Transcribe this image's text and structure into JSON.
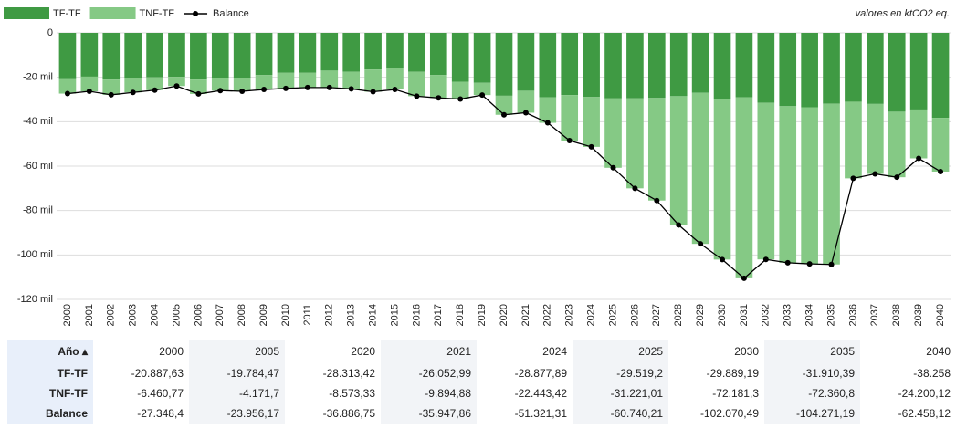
{
  "chart_data": {
    "type": "bar",
    "stacked": true,
    "note": "valores en ktCO2 eq.",
    "categories": [
      "2000",
      "2001",
      "2002",
      "2003",
      "2004",
      "2005",
      "2006",
      "2007",
      "2008",
      "2009",
      "2010",
      "2011",
      "2012",
      "2013",
      "2014",
      "2015",
      "2016",
      "2017",
      "2018",
      "2019",
      "2020",
      "2021",
      "2022",
      "2023",
      "2024",
      "2025",
      "2026",
      "2027",
      "2028",
      "2029",
      "2030",
      "2031",
      "2032",
      "2033",
      "2034",
      "2035",
      "2036",
      "2037",
      "2038",
      "2039",
      "2040"
    ],
    "series": [
      {
        "name": "TF-TF",
        "color": "#3f9a43",
        "values": [
          -20887.63,
          -19700,
          -21000,
          -20500,
          -20000,
          -19784.47,
          -21000,
          -20500,
          -20300,
          -19000,
          -18000,
          -18000,
          -17000,
          -17500,
          -16500,
          -16000,
          -17500,
          -19000,
          -22000,
          -22500,
          -28313.42,
          -26052.99,
          -29000,
          -28000,
          -28877.89,
          -29519.2,
          -29500,
          -29300,
          -28500,
          -27000,
          -29889.19,
          -29000,
          -31500,
          -33000,
          -33500,
          -31910.39,
          -31000,
          -32000,
          -35500,
          -34500,
          -38258
        ]
      },
      {
        "name": "TNF-TF",
        "color": "#85c985",
        "values": [
          -6460.77,
          -6600,
          -6900,
          -6300,
          -5800,
          -4171.7,
          -6500,
          -5500,
          -6000,
          -6500,
          -7000,
          -6600,
          -7600,
          -7700,
          -10000,
          -9500,
          -11000,
          -10300,
          -7800,
          -5500,
          -8573.33,
          -9894.88,
          -11500,
          -20500,
          -22443.42,
          -31221.01,
          -40500,
          -46200,
          -58000,
          -68000,
          -72181.3,
          -81500,
          -70500,
          -70500,
          -70500,
          -72360.8,
          -34500,
          -31500,
          -29500,
          -22000,
          -24200.12
        ]
      },
      {
        "name": "Balance",
        "type": "line",
        "color": "#000000",
        "values": [
          -27348.4,
          -26300,
          -27900,
          -26800,
          -25800,
          -23956.17,
          -27500,
          -26000,
          -26300,
          -25500,
          -25000,
          -24600,
          -24600,
          -25200,
          -26500,
          -25500,
          -28500,
          -29300,
          -29800,
          -28000,
          -36886.75,
          -35947.86,
          -40500,
          -48500,
          -51321.31,
          -60740.21,
          -70000,
          -75500,
          -86500,
          -95000,
          -102070.49,
          -110500,
          -102000,
          -103500,
          -104000,
          -104271.19,
          -65500,
          -63500,
          -65000,
          -56500,
          -62458.12
        ]
      }
    ],
    "ylim": [
      -120000,
      0
    ],
    "yticks": [
      {
        "value": 0,
        "label": "0"
      },
      {
        "value": -20000,
        "label": "-20 mil"
      },
      {
        "value": -40000,
        "label": "-40 mil"
      },
      {
        "value": -60000,
        "label": "-60 mil"
      },
      {
        "value": -80000,
        "label": "-80 mil"
      },
      {
        "value": -100000,
        "label": "-100 mil"
      },
      {
        "value": -120000,
        "label": "-120 mil"
      }
    ],
    "grid": true,
    "legend": "top-left"
  },
  "table": {
    "header": [
      "Año ▴",
      "2000",
      "2005",
      "2020",
      "2021",
      "2024",
      "2025",
      "2030",
      "2035",
      "2040"
    ],
    "rows": [
      [
        "TF-TF",
        "-20.887,63",
        "-19.784,47",
        "-28.313,42",
        "-26.052,99",
        "-28.877,89",
        "-29.519,2",
        "-29.889,19",
        "-31.910,39",
        "-38.258"
      ],
      [
        "TNF-TF",
        "-6.460,77",
        "-4.171,7",
        "-8.573,33",
        "-9.894,88",
        "-22.443,42",
        "-31.221,01",
        "-72.181,3",
        "-72.360,8",
        "-24.200,12"
      ],
      [
        "Balance",
        "-27.348,4",
        "-23.956,17",
        "-36.886,75",
        "-35.947,86",
        "-51.321,31",
        "-60.740,21",
        "-102.070,49",
        "-104.271,19",
        "-62.458,12"
      ]
    ]
  }
}
